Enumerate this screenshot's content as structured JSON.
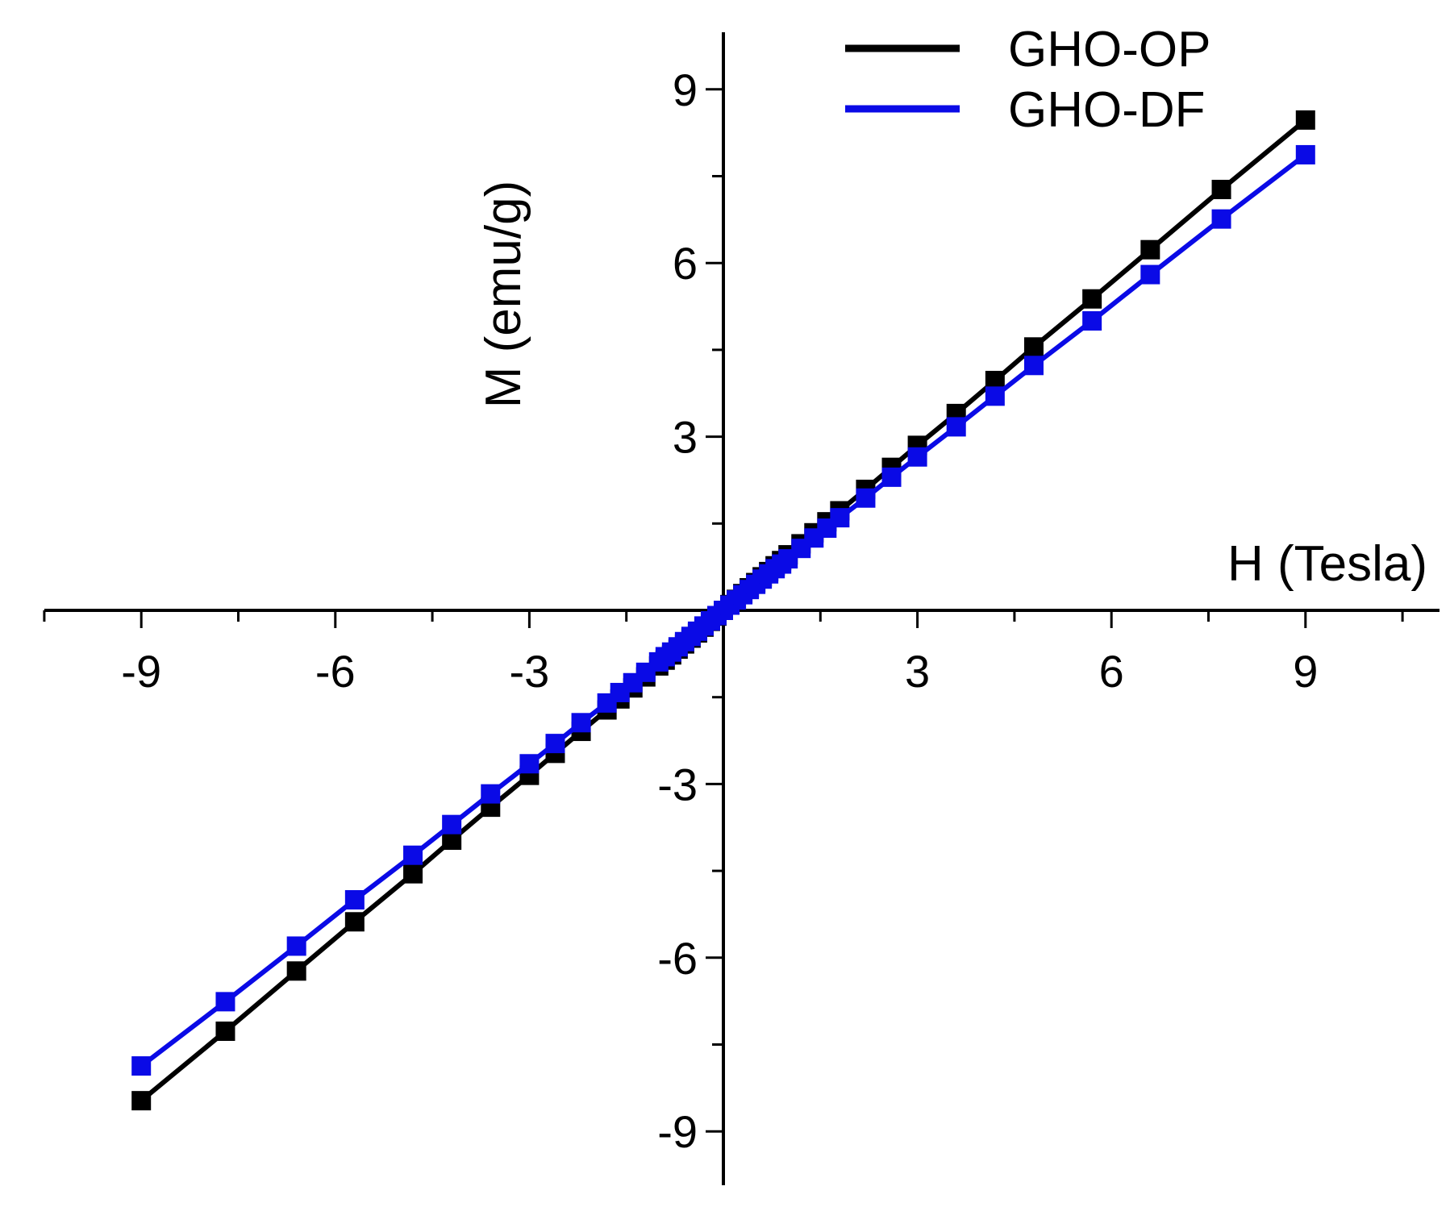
{
  "chart_data": {
    "type": "line",
    "title": "",
    "xlabel": "H (Tesla)",
    "ylabel": "M (emu/g)",
    "xlim": [
      -10.5,
      11
    ],
    "ylim": [
      -10,
      10
    ],
    "x_ticks": [
      -9,
      -6,
      -3,
      3,
      6,
      9
    ],
    "x_tick_labels": [
      "-9",
      "-6",
      "-3",
      "3",
      "6",
      "9"
    ],
    "y_ticks": [
      -9,
      -6,
      -3,
      3,
      6,
      9
    ],
    "y_tick_labels": [
      "-9",
      "-6",
      "-3",
      "3",
      "6",
      "9"
    ],
    "grid": false,
    "legend_position": "top-right",
    "x": [
      -9,
      -7.7,
      -6.6,
      -5.7,
      -4.8,
      -4.2,
      -3.6,
      -3.0,
      -2.6,
      -2.2,
      -1.8,
      -1.6,
      -1.4,
      -1.2,
      -1.0,
      -0.9,
      -0.8,
      -0.7,
      -0.6,
      -0.5,
      -0.4,
      -0.3,
      -0.2,
      -0.1,
      0,
      0.1,
      0.2,
      0.3,
      0.4,
      0.5,
      0.6,
      0.7,
      0.8,
      0.9,
      1.0,
      1.2,
      1.4,
      1.6,
      1.8,
      2.2,
      2.6,
      3.0,
      3.6,
      4.2,
      4.8,
      5.7,
      6.6,
      7.7,
      9
    ],
    "series": [
      {
        "name": "GHO-OP",
        "color": "#000000",
        "values": [
          -8.47,
          -7.27,
          -6.23,
          -5.38,
          -4.55,
          -3.97,
          -3.4,
          -2.85,
          -2.47,
          -2.09,
          -1.72,
          -1.53,
          -1.34,
          -1.15,
          -0.96,
          -0.86,
          -0.77,
          -0.67,
          -0.58,
          -0.48,
          -0.39,
          -0.29,
          -0.19,
          -0.1,
          0,
          0.1,
          0.19,
          0.29,
          0.39,
          0.48,
          0.58,
          0.67,
          0.77,
          0.86,
          0.96,
          1.15,
          1.34,
          1.53,
          1.72,
          2.09,
          2.47,
          2.85,
          3.4,
          3.97,
          4.55,
          5.38,
          6.23,
          7.27,
          8.47
        ]
      },
      {
        "name": "GHO-DF",
        "color": "#0a0ae6",
        "values": [
          -7.87,
          -6.76,
          -5.8,
          -5.0,
          -4.23,
          -3.7,
          -3.17,
          -2.65,
          -2.3,
          -1.94,
          -1.6,
          -1.42,
          -1.25,
          -1.07,
          -0.89,
          -0.8,
          -0.72,
          -0.63,
          -0.54,
          -0.45,
          -0.36,
          -0.27,
          -0.18,
          -0.09,
          0,
          0.09,
          0.18,
          0.27,
          0.36,
          0.45,
          0.54,
          0.63,
          0.72,
          0.8,
          0.89,
          1.07,
          1.25,
          1.42,
          1.6,
          1.94,
          2.3,
          2.65,
          3.17,
          3.7,
          4.23,
          5.0,
          5.8,
          6.76,
          7.87
        ]
      }
    ]
  }
}
